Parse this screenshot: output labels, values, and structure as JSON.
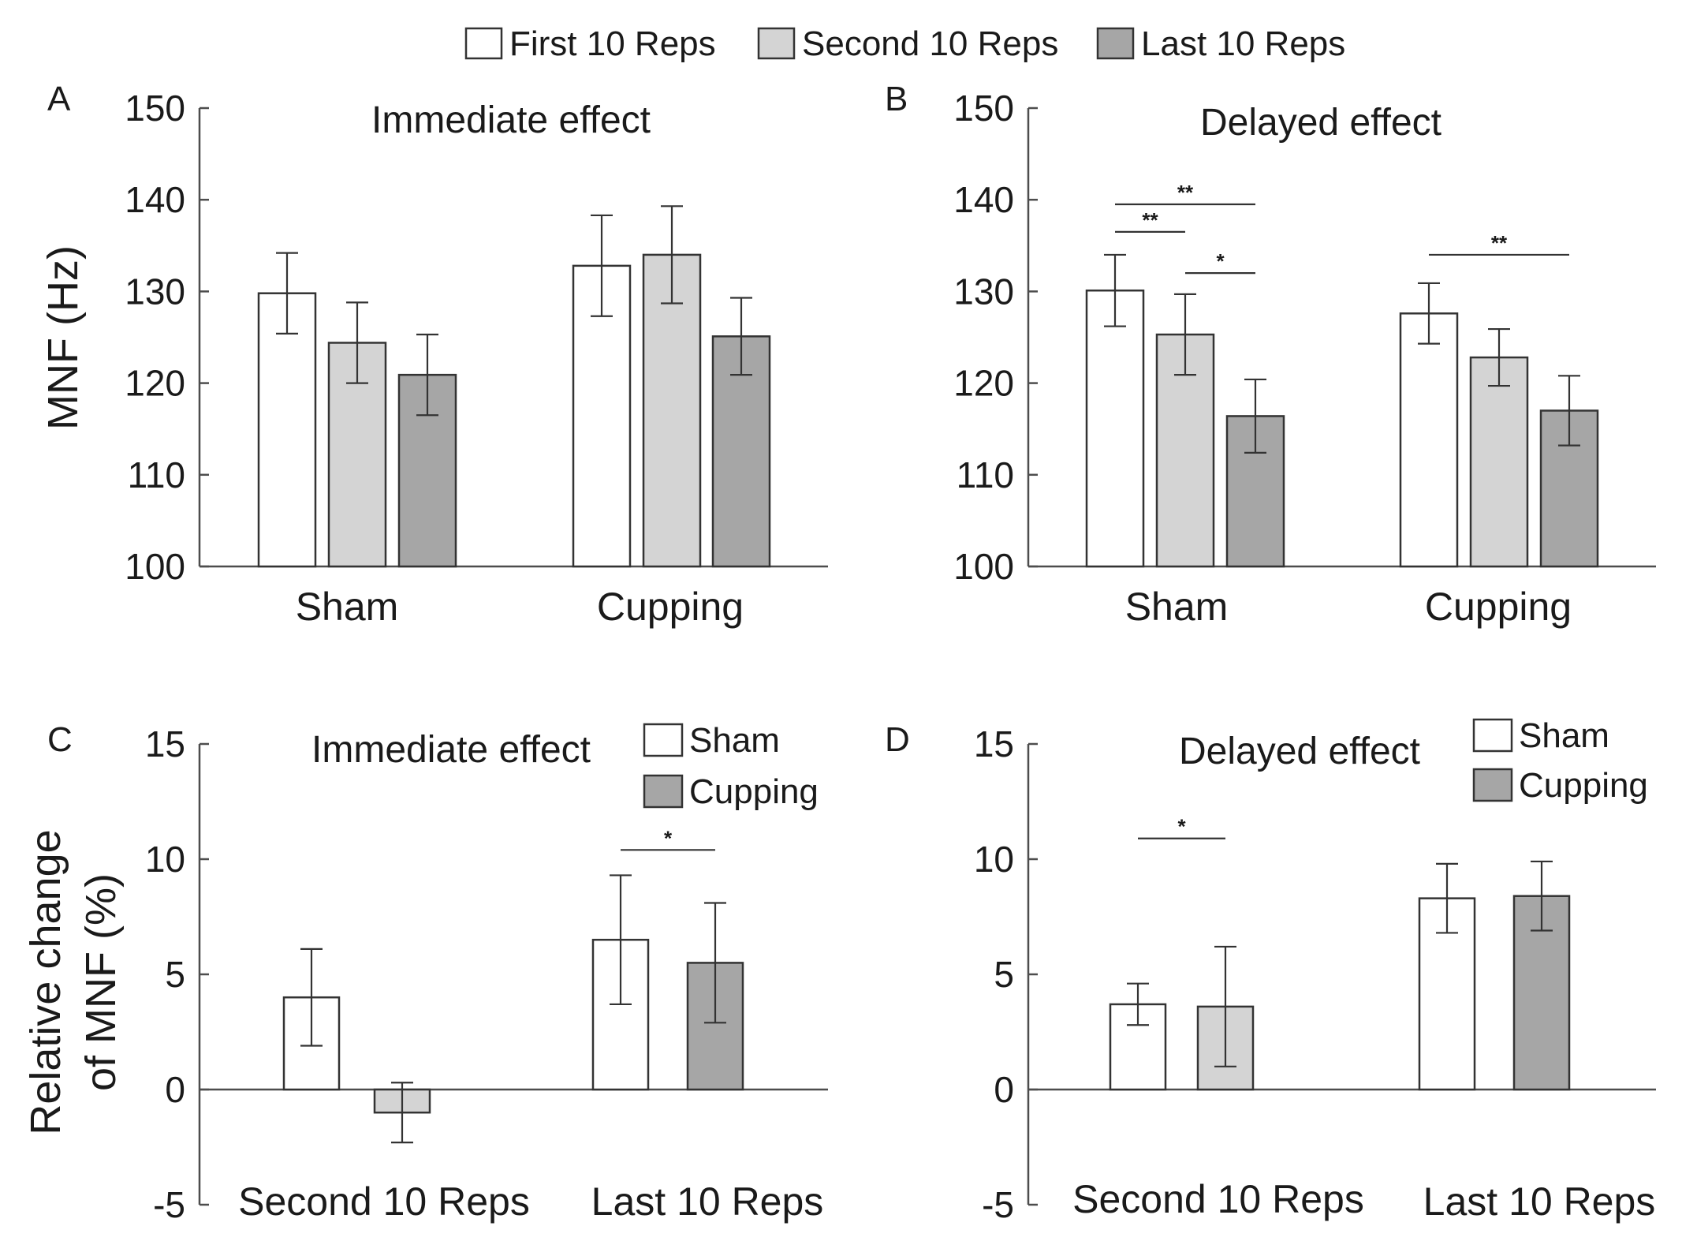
{
  "legend_top": [
    {
      "label": "First 10 Reps",
      "color": "#ffffff"
    },
    {
      "label": "Second 10 Reps",
      "color": "#d4d4d4"
    },
    {
      "label": "Last 10 Reps",
      "color": "#a6a6a6"
    }
  ],
  "chart_data": [
    {
      "panel": "A",
      "type": "bar",
      "title": "Immediate effect",
      "ylabel": "MNF (Hz)",
      "xlabel": "",
      "ylim": [
        100,
        150
      ],
      "yticks": [
        100,
        110,
        120,
        130,
        140,
        150
      ],
      "categories": [
        "Sham",
        "Cupping"
      ],
      "series": [
        {
          "name": "First 10 Reps",
          "color": "#ffffff",
          "values": [
            129.8,
            132.8
          ],
          "errors": [
            4.4,
            5.5
          ]
        },
        {
          "name": "Second 10 Reps",
          "color": "#d4d4d4",
          "values": [
            124.4,
            134.0
          ],
          "errors": [
            4.4,
            5.3
          ]
        },
        {
          "name": "Last 10 Reps",
          "color": "#a6a6a6",
          "values": [
            120.9,
            125.1
          ],
          "errors": [
            4.4,
            4.2
          ]
        }
      ],
      "significance": []
    },
    {
      "panel": "B",
      "type": "bar",
      "title": "Delayed effect",
      "ylabel": "",
      "xlabel": "",
      "ylim": [
        100,
        150
      ],
      "yticks": [
        100,
        110,
        120,
        130,
        140,
        150
      ],
      "categories": [
        "Sham",
        "Cupping"
      ],
      "series": [
        {
          "name": "First 10 Reps",
          "color": "#ffffff",
          "values": [
            130.1,
            127.6
          ],
          "errors": [
            3.9,
            3.3
          ]
        },
        {
          "name": "Second 10 Reps",
          "color": "#d4d4d4",
          "values": [
            125.3,
            122.8
          ],
          "errors": [
            4.4,
            3.1
          ]
        },
        {
          "name": "Last 10 Reps",
          "color": "#a6a6a6",
          "values": [
            116.4,
            117.0
          ],
          "errors": [
            4.0,
            3.8
          ]
        }
      ],
      "significance": [
        {
          "category": 0,
          "from": 0,
          "to": 2,
          "y": 139.5,
          "label": "**"
        },
        {
          "category": 0,
          "from": 0,
          "to": 1,
          "y": 136.5,
          "label": "**"
        },
        {
          "category": 0,
          "from": 1,
          "to": 2,
          "y": 132.0,
          "label": "*"
        },
        {
          "category": 1,
          "from": 0,
          "to": 2,
          "y": 134.0,
          "label": "**"
        }
      ]
    },
    {
      "panel": "C",
      "type": "bar",
      "title": "Immediate effect",
      "ylabel": "Relative change of MNF (%)",
      "xlabel": "",
      "ylim": [
        -5,
        15
      ],
      "yticks": [
        -5,
        0,
        5,
        10,
        15
      ],
      "categories": [
        "Second 10 Reps",
        "Last 10 Reps"
      ],
      "series": [
        {
          "name": "Sham",
          "values": [
            4.0,
            6.5
          ],
          "errors": [
            2.1,
            2.8
          ]
        },
        {
          "name": "Cupping",
          "values": [
            -1.0,
            5.5
          ],
          "errors": [
            1.3,
            2.6
          ]
        }
      ],
      "bar_colors": [
        [
          "#ffffff",
          "#ffffff"
        ],
        [
          "#d4d4d4",
          "#a6a6a6"
        ]
      ],
      "legend": [
        {
          "label": "Sham",
          "color": "#ffffff"
        },
        {
          "label": "Cupping",
          "color": "#a6a6a6"
        }
      ],
      "significance": [
        {
          "from": [
            0,
            1
          ],
          "to": [
            1,
            1
          ],
          "y": 10.4,
          "label": "*"
        }
      ]
    },
    {
      "panel": "D",
      "type": "bar",
      "title": "Delayed effect",
      "ylabel": "",
      "xlabel": "",
      "ylim": [
        -5,
        15
      ],
      "yticks": [
        -5,
        0,
        5,
        10,
        15
      ],
      "categories": [
        "Second 10 Reps",
        "Last 10 Reps"
      ],
      "series": [
        {
          "name": "Sham",
          "values": [
            3.7,
            8.3
          ],
          "errors": [
            0.9,
            1.5
          ]
        },
        {
          "name": "Cupping",
          "values": [
            3.6,
            8.4
          ],
          "errors": [
            2.6,
            1.5
          ]
        }
      ],
      "bar_colors": [
        [
          "#ffffff",
          "#ffffff"
        ],
        [
          "#d4d4d4",
          "#a6a6a6"
        ]
      ],
      "legend": [
        {
          "label": "Sham",
          "color": "#ffffff"
        },
        {
          "label": "Cupping",
          "color": "#a6a6a6"
        }
      ],
      "significance": [
        {
          "from": [
            0,
            0
          ],
          "to": [
            1,
            0
          ],
          "y": 10.9,
          "label": "*"
        }
      ]
    }
  ]
}
